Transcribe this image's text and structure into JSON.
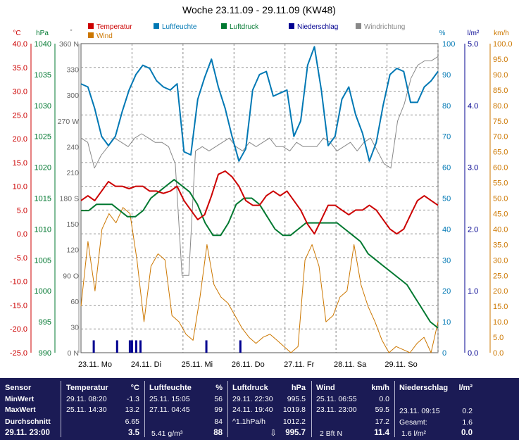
{
  "chart_data": {
    "type": "line",
    "title": "Woche 23.11.09 - 29.11.09 (KW48)",
    "legend": [
      "Temperatur",
      "Wind",
      "Luftfeuchte",
      "Luftdruck",
      "Niederschlag",
      "Windrichtung"
    ],
    "x_labels": [
      "23.11. Mo",
      "24.11. Di",
      "25.11. Mi",
      "26.11. Do",
      "27.11. Fr",
      "28.11. Sa",
      "29.11. So"
    ],
    "axes": {
      "temperature": {
        "unit": "°C",
        "min": -25,
        "max": 40,
        "step": 5,
        "ticks": [
          "40.0",
          "35.0",
          "30.0",
          "25.0",
          "20.0",
          "15.0",
          "10.0",
          "5.0",
          "0.0",
          "-5.0",
          "-10.0",
          "-15.0",
          "-20.0",
          "-25.0"
        ]
      },
      "pressure": {
        "unit": "hPa",
        "min": 990,
        "max": 1040,
        "step": 5,
        "ticks": [
          "1040",
          "1035",
          "1030",
          "1025",
          "1020",
          "1015",
          "1010",
          "1005",
          "1000",
          "995",
          "990"
        ]
      },
      "wind_direction": {
        "unit": "°",
        "min": 0,
        "max": 360,
        "step": 30,
        "ticks": [
          "360 N",
          "330",
          "300",
          "270 W",
          "240",
          "210",
          "180 S",
          "150",
          "120",
          "90 O",
          "60",
          "30",
          "0 N"
        ]
      },
      "humidity": {
        "unit": "%",
        "min": 0,
        "max": 100,
        "step": 10,
        "ticks": [
          "100",
          "90",
          "80",
          "70",
          "60",
          "50",
          "40",
          "30",
          "20",
          "10",
          "0"
        ]
      },
      "precipitation": {
        "unit": "l/m²",
        "min": 0,
        "max": 5,
        "step": 1,
        "ticks": [
          "5.0",
          "4.0",
          "3.0",
          "2.0",
          "1.0",
          "0.0"
        ]
      },
      "wind_speed": {
        "unit": "km/h",
        "min": 0,
        "max": 100,
        "step": 5,
        "ticks": [
          "100.0",
          "95.0",
          "90.0",
          "85.0",
          "80.0",
          "75.0",
          "70.0",
          "65.0",
          "60.0",
          "55.0",
          "50.0",
          "45.0",
          "40.0",
          "35.0",
          "30.0",
          "25.0",
          "20.0",
          "15.0",
          "10.0",
          "5.0",
          "0.0"
        ]
      }
    },
    "series": [
      {
        "name": "Temperatur",
        "axis": "temperature",
        "color": "#cc0000",
        "step_hours": 4,
        "values": [
          7,
          8,
          7,
          9,
          11,
          10,
          10,
          9.5,
          10,
          10,
          9,
          9,
          8.5,
          9,
          10,
          7,
          5,
          3,
          4,
          8,
          12.5,
          13.2,
          12,
          10,
          7,
          6,
          6,
          8,
          9,
          8,
          9,
          7,
          5,
          2,
          0,
          3,
          6,
          6,
          5,
          4,
          5,
          5,
          6,
          5,
          3,
          1,
          0,
          1,
          4,
          7,
          8,
          7,
          6
        ]
      },
      {
        "name": "Luftfeuchte",
        "axis": "humidity",
        "color": "#0078b4",
        "step_hours": 4,
        "values": [
          87,
          86,
          79,
          70,
          67,
          70,
          78,
          85,
          90,
          93,
          92,
          88,
          86,
          85,
          87,
          65,
          64,
          82,
          89,
          95,
          86,
          79,
          70,
          62,
          66,
          85,
          90,
          91,
          83,
          84,
          85,
          70,
          75,
          93,
          99,
          85,
          67,
          70,
          82,
          86,
          77,
          71,
          62,
          68,
          80,
          90,
          92,
          91,
          81,
          81,
          86,
          88,
          91
        ]
      },
      {
        "name": "Luftdruck",
        "axis": "pressure",
        "color": "#007830",
        "step_hours": 4,
        "values": [
          1013,
          1013,
          1014,
          1014,
          1014,
          1013,
          1012,
          1012,
          1013,
          1015,
          1016,
          1017,
          1018,
          1017,
          1016,
          1014,
          1011,
          1009,
          1009,
          1011,
          1014,
          1015,
          1015,
          1014,
          1012,
          1010,
          1009,
          1009,
          1010,
          1011,
          1011,
          1011,
          1011,
          1011,
          1010,
          1009,
          1008,
          1006,
          1005,
          1004,
          1003,
          1002,
          1001,
          999,
          997,
          995,
          994
        ]
      },
      {
        "name": "Windrichtung",
        "axis": "wind_direction",
        "color": "#888888",
        "step_hours": 4,
        "values": [
          250,
          245,
          215,
          230,
          240,
          250,
          245,
          240,
          250,
          255,
          250,
          245,
          245,
          240,
          220,
          90,
          90,
          235,
          240,
          235,
          240,
          245,
          250,
          240,
          235,
          245,
          240,
          245,
          250,
          240,
          240,
          235,
          245,
          240,
          240,
          240,
          250,
          245,
          235,
          240,
          245,
          235,
          245,
          250,
          235,
          220,
          215,
          270,
          290,
          320,
          335,
          340,
          340,
          345
        ]
      },
      {
        "name": "Wind",
        "axis": "wind_speed",
        "color": "#cc7700",
        "step_hours": 4,
        "values": [
          15,
          36,
          20,
          40,
          45,
          42,
          47,
          45,
          30,
          10,
          28,
          32,
          30,
          12,
          10,
          6,
          4,
          18,
          35,
          22,
          18,
          16,
          12,
          8,
          5,
          3,
          5,
          6,
          4,
          2,
          0,
          2,
          30,
          35,
          28,
          10,
          12,
          18,
          20,
          35,
          22,
          15,
          10,
          4,
          0,
          2,
          1,
          0,
          3,
          5,
          0,
          10
        ]
      },
      {
        "name": "Niederschlag",
        "axis": "precipitation",
        "color": "#000090",
        "type": "bar",
        "x_hours": [
          6,
          17,
          23,
          24,
          26,
          28,
          59,
          75
        ],
        "values": [
          0.2,
          0.2,
          0.2,
          0.2,
          0.2,
          0.2,
          0.2,
          0.2
        ]
      }
    ]
  },
  "stats": {
    "sensor": {
      "title": "Sensor",
      "rows": [
        "MinWert",
        "MaxWert",
        "Durchschnitt"
      ],
      "current": "29.11. 23:00"
    },
    "temperatur": {
      "title": "Temperatur",
      "unit": "°C",
      "min_date": "29.11. 08:20",
      "min_val": "-1.3",
      "max_date": "25.11. 14:30",
      "max_val": "13.2",
      "avg": "6.65",
      "current": "3.5"
    },
    "luftfeuchte": {
      "title": "Luftfeuchte",
      "unit": "%",
      "min_date": "25.11. 15:05",
      "min_val": "56",
      "max_date": "27.11. 04:45",
      "max_val": "99",
      "avg": "84",
      "abs": "5.41 g/m³",
      "current": "88"
    },
    "luftdruck": {
      "title": "Luftdruck",
      "unit": "hPa",
      "min_date": "29.11. 22:30",
      "min_val": "995.5",
      "max_date": "24.11. 19:40",
      "max_val": "1019.8",
      "trend": "^1.1hPa/h",
      "avg": "1012.2",
      "current": "995.7"
    },
    "wind": {
      "title": "Wind",
      "unit": "km/h",
      "min_date": "25.11. 06:55",
      "min_val": "0.0",
      "max_date": "23.11. 23:00",
      "max_val": "59.5",
      "avg": "17.2",
      "beaufort": "2 Bft N",
      "current": "11.4"
    },
    "niederschlag": {
      "title": "Niederschlag",
      "unit": "l/m²",
      "max_date": "23.11. 09:15",
      "max_val": "0.2",
      "total_label": "Gesamt:",
      "total": "1.6",
      "rate": "1.6 l/m²",
      "current": "0.0"
    }
  },
  "colors": {
    "temp": "#cc0000",
    "pressure": "#007830",
    "humidity": "#0078b4",
    "precip": "#000090",
    "winddir": "#888888",
    "wind": "#cc7700",
    "panel": "#1b1b55"
  }
}
